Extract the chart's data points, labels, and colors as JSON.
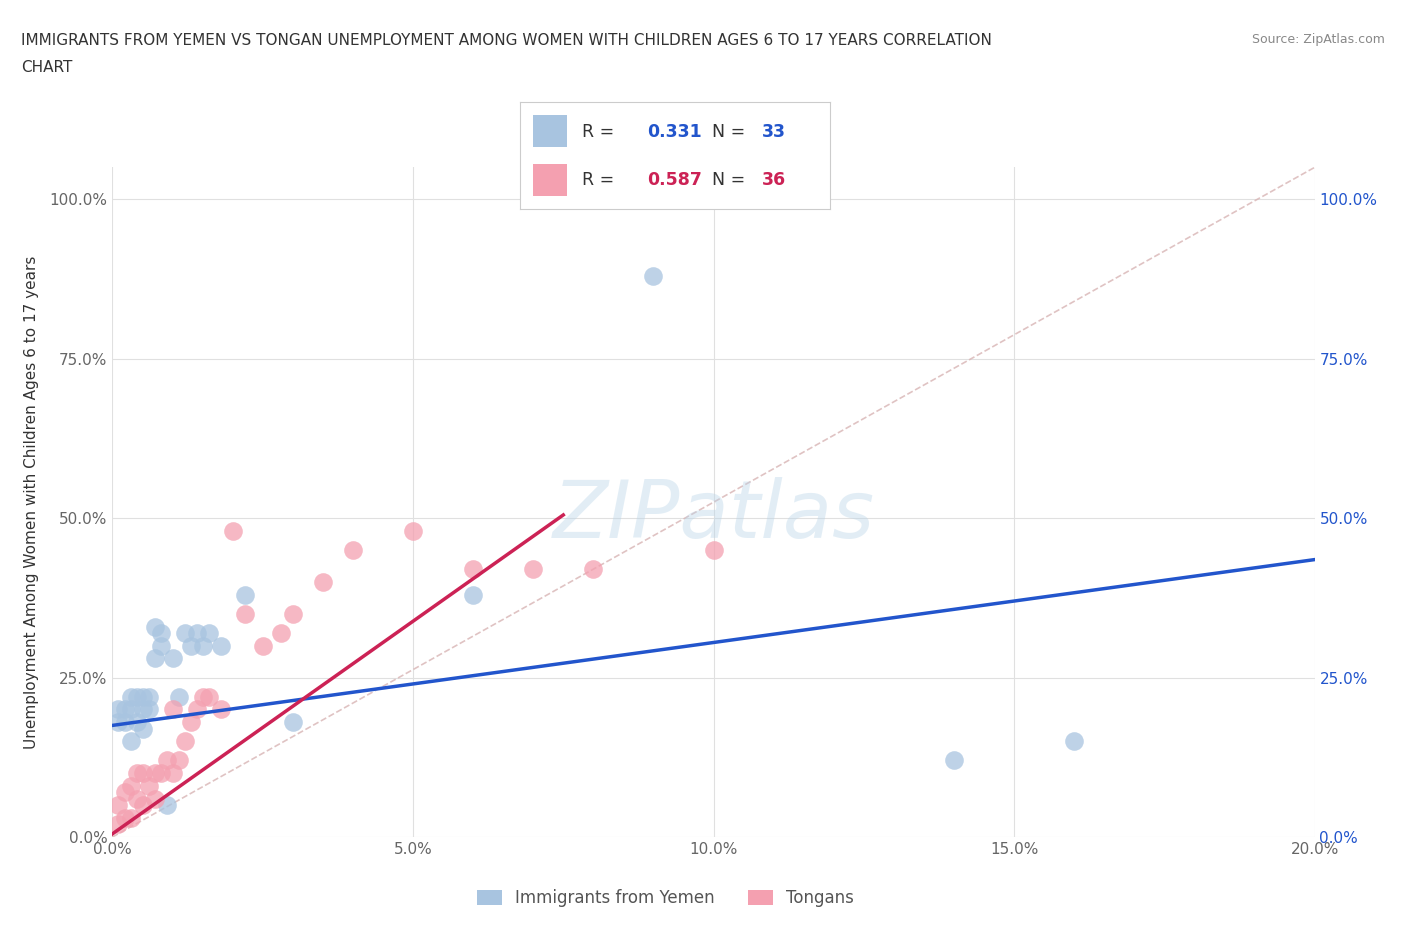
{
  "title_line1": "IMMIGRANTS FROM YEMEN VS TONGAN UNEMPLOYMENT AMONG WOMEN WITH CHILDREN AGES 6 TO 17 YEARS CORRELATION",
  "title_line2": "CHART",
  "source": "Source: ZipAtlas.com",
  "ylabel": "Unemployment Among Women with Children Ages 6 to 17 years",
  "xlim": [
    0.0,
    0.2
  ],
  "ylim": [
    0.0,
    1.05
  ],
  "yticks": [
    0.0,
    0.25,
    0.5,
    0.75,
    1.0
  ],
  "ytick_labels_left": [
    "0.0%",
    "25.0%",
    "50.0%",
    "75.0%",
    "100.0%"
  ],
  "ytick_labels_right": [
    "100.0%",
    "75.0%",
    "50.0%",
    "25.0%",
    "0.0%"
  ],
  "xticks": [
    0.0,
    0.05,
    0.1,
    0.15,
    0.2
  ],
  "xtick_labels": [
    "0.0%",
    "5.0%",
    "10.0%",
    "15.0%",
    "20.0%"
  ],
  "blue_R": 0.331,
  "blue_N": 33,
  "pink_R": 0.587,
  "pink_N": 36,
  "blue_scatter_color": "#a8c4e0",
  "pink_scatter_color": "#f4a0b0",
  "blue_line_color": "#2255cc",
  "pink_line_color": "#cc2255",
  "diagonal_color": "#d8b4b4",
  "watermark": "ZIPatlas",
  "blue_scatter_x": [
    0.001,
    0.001,
    0.002,
    0.002,
    0.003,
    0.003,
    0.003,
    0.004,
    0.004,
    0.005,
    0.005,
    0.005,
    0.006,
    0.006,
    0.007,
    0.007,
    0.008,
    0.008,
    0.009,
    0.01,
    0.011,
    0.012,
    0.013,
    0.014,
    0.015,
    0.016,
    0.018,
    0.022,
    0.03,
    0.06,
    0.09,
    0.14,
    0.16
  ],
  "blue_scatter_y": [
    0.18,
    0.2,
    0.18,
    0.2,
    0.15,
    0.2,
    0.22,
    0.18,
    0.22,
    0.17,
    0.2,
    0.22,
    0.2,
    0.22,
    0.28,
    0.33,
    0.3,
    0.32,
    0.05,
    0.28,
    0.22,
    0.32,
    0.3,
    0.32,
    0.3,
    0.32,
    0.3,
    0.38,
    0.18,
    0.38,
    0.88,
    0.12,
    0.15
  ],
  "pink_scatter_x": [
    0.001,
    0.001,
    0.002,
    0.002,
    0.003,
    0.003,
    0.004,
    0.004,
    0.005,
    0.005,
    0.006,
    0.007,
    0.007,
    0.008,
    0.009,
    0.01,
    0.01,
    0.011,
    0.012,
    0.013,
    0.014,
    0.015,
    0.016,
    0.018,
    0.02,
    0.022,
    0.025,
    0.028,
    0.03,
    0.035,
    0.04,
    0.05,
    0.06,
    0.07,
    0.08,
    0.1
  ],
  "pink_scatter_y": [
    0.02,
    0.05,
    0.03,
    0.07,
    0.03,
    0.08,
    0.06,
    0.1,
    0.05,
    0.1,
    0.08,
    0.06,
    0.1,
    0.1,
    0.12,
    0.1,
    0.2,
    0.12,
    0.15,
    0.18,
    0.2,
    0.22,
    0.22,
    0.2,
    0.48,
    0.35,
    0.3,
    0.32,
    0.35,
    0.4,
    0.45,
    0.48,
    0.42,
    0.42,
    0.42,
    0.45
  ],
  "legend_label_blue": "Immigrants from Yemen",
  "legend_label_pink": "Tongans",
  "blue_trend_x0": 0.0,
  "blue_trend_y0": 0.175,
  "blue_trend_x1": 0.2,
  "blue_trend_y1": 0.435,
  "pink_trend_x0": 0.0,
  "pink_trend_y0": 0.005,
  "pink_trend_x1": 0.075,
  "pink_trend_y1": 0.505
}
